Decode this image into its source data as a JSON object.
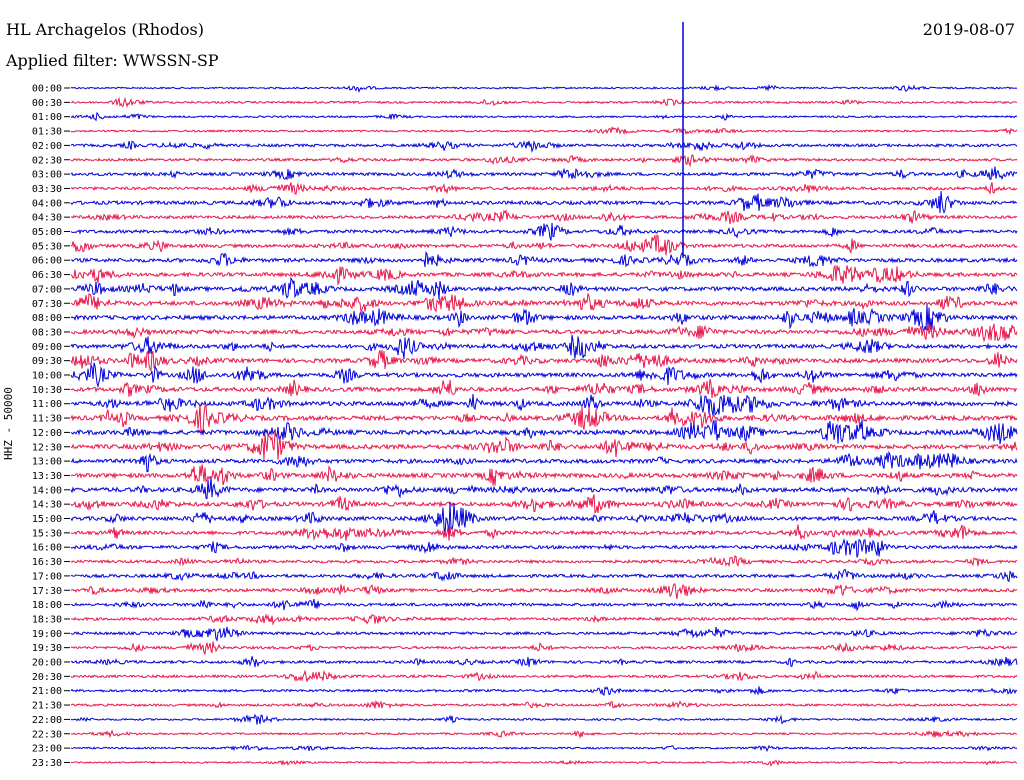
{
  "header": {
    "station": "HL Archagelos (Rhodos)",
    "date": "2019-08-07",
    "filter": "Applied filter: WWSSN-SP"
  },
  "chart_data": {
    "type": "line",
    "title": "HL Archagelos (Rhodos)",
    "ylabel": "HHZ - 50000",
    "xlabel": "",
    "categories": [
      "00:00",
      "00:30",
      "01:00",
      "01:30",
      "02:00",
      "02:30",
      "03:00",
      "03:30",
      "04:00",
      "04:30",
      "05:00",
      "05:30",
      "06:00",
      "06:30",
      "07:00",
      "07:30",
      "08:00",
      "08:30",
      "09:00",
      "09:30",
      "10:00",
      "10:30",
      "11:00",
      "11:30",
      "12:00",
      "12:30",
      "13:00",
      "13:30",
      "14:00",
      "14:30",
      "15:00",
      "15:30",
      "16:00",
      "16:30",
      "17:00",
      "17:30",
      "18:00",
      "18:30",
      "19:00",
      "19:30",
      "20:00",
      "20:30",
      "21:00",
      "21:30",
      "22:00",
      "22:30",
      "23:00",
      "23:30"
    ],
    "series_colors": [
      "#0000dd",
      "#e8174a"
    ],
    "activity": [
      0.12,
      0.25,
      0.15,
      0.18,
      0.45,
      0.4,
      0.55,
      0.5,
      0.7,
      0.55,
      0.6,
      0.65,
      0.75,
      0.8,
      0.85,
      0.9,
      0.9,
      0.85,
      0.8,
      0.9,
      0.85,
      0.9,
      0.95,
      1.0,
      1.0,
      0.95,
      0.85,
      0.9,
      0.95,
      0.85,
      0.8,
      0.7,
      0.6,
      0.5,
      0.55,
      0.6,
      0.5,
      0.45,
      0.45,
      0.4,
      0.45,
      0.4,
      0.35,
      0.3,
      0.2,
      0.18,
      0.15,
      0.12
    ],
    "grid": false,
    "legend": "none"
  }
}
